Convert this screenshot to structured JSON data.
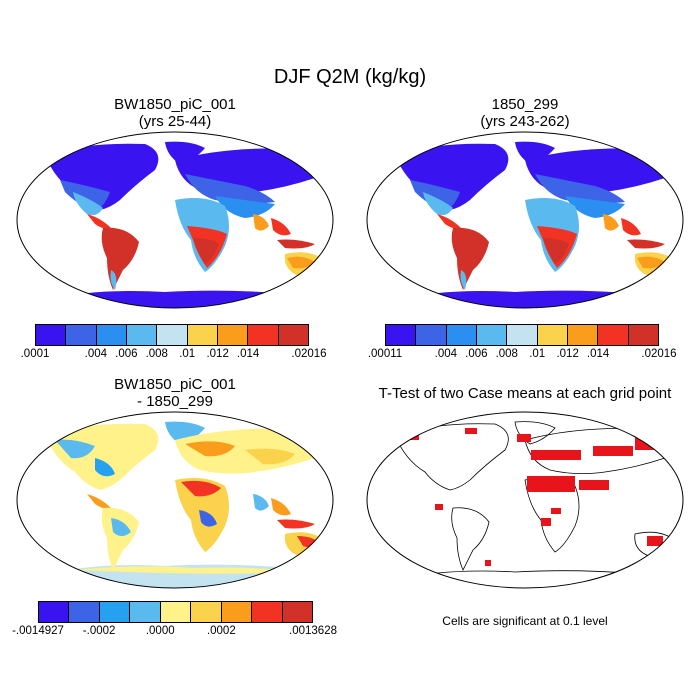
{
  "figure": {
    "title": "DJF Q2M (kg/kg)"
  },
  "panels": [
    {
      "title_line1": "BW1850_piC_001",
      "title_line2": "(yrs 25-44)"
    },
    {
      "title_line1": "1850_299",
      "title_line2": "(yrs 243-262)"
    },
    {
      "title_line1": "BW1850_piC_001",
      "title_line2": "- 1850_299"
    },
    {
      "title_line1": "T-Test of two Case means at each grid point",
      "title_line2": ""
    }
  ],
  "colorbars": [
    {
      "colors": [
        "#3a14f0",
        "#3d63e6",
        "#2a8ff0",
        "#5ab9ee",
        "#c4e3f0",
        "#fad24b",
        "#fa9c1c",
        "#f23222",
        "#d23129"
      ],
      "labels": [
        ".0001",
        "",
        ".004",
        ".006",
        ".008",
        ".01",
        ".012",
        ".014",
        "",
        ".02016"
      ]
    },
    {
      "colors": [
        "#3a14f0",
        "#3d63e6",
        "#2a8ff0",
        "#5ab9ee",
        "#c4e3f0",
        "#fad24b",
        "#fa9c1c",
        "#f23222",
        "#d23129"
      ],
      "labels": [
        ".00011",
        "",
        ".004",
        ".006",
        ".008",
        ".01",
        ".012",
        ".014",
        "",
        ".02016"
      ]
    },
    {
      "colors": [
        "#3a14f0",
        "#3d63e6",
        "#26a1ef",
        "#5ab9ee",
        "#fff28a",
        "#fad24b",
        "#fa9c1c",
        "#f23222",
        "#d23129"
      ],
      "labels": [
        "-.0014927",
        "",
        "-.0002",
        "",
        ".0000",
        "",
        ".0002",
        "",
        "",
        ".0013628"
      ]
    }
  ],
  "significance_note": "Cells are significant at 0.1 level",
  "colors": {
    "ttest_fill": "#e8141c",
    "ocean": "#ffffff",
    "coast": "#000000"
  }
}
